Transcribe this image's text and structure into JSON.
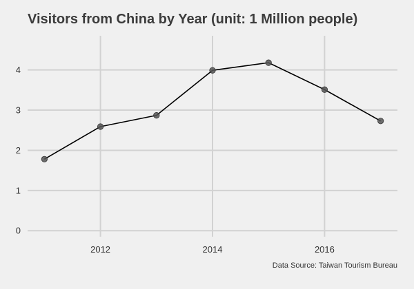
{
  "chart_data": {
    "type": "line",
    "title": "Visitors from China by Year (unit: 1 Million people)",
    "source": "Data Source: Taiwan Tourism Bureau",
    "xlabel": "",
    "ylabel": "",
    "x": [
      2011,
      2012,
      2013,
      2014,
      2015,
      2016,
      2017
    ],
    "series": [
      {
        "values": [
          1.78,
          2.59,
          2.87,
          3.99,
          4.18,
          3.51,
          2.73
        ]
      }
    ],
    "xlim": [
      2010.7,
      2017.3
    ],
    "ylim": [
      -0.15,
      4.85
    ],
    "xticks": [
      2012,
      2014,
      2016
    ],
    "xtick_labels": [
      "2012",
      "2014",
      "2016"
    ],
    "yticks": [
      0,
      1,
      2,
      3,
      4
    ],
    "ytick_labels": [
      "0",
      "1",
      "2",
      "3",
      "4"
    ],
    "grid": true,
    "legend": "none",
    "colors": {
      "background": "#f0f0f0",
      "grid": "#d2d2d2",
      "line": "#000000",
      "marker_fill": "#555555",
      "title": "#3c3c3c",
      "text": "#333333"
    }
  }
}
